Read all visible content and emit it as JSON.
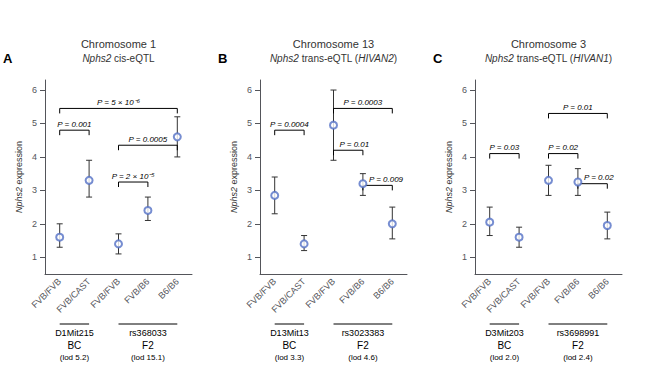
{
  "chart_data": [
    {
      "type": "scatter",
      "label": "A",
      "title": "Chromosome 1",
      "subtitle": "Nphs2 cis-eQTL",
      "categories": [
        "FVB/FVB",
        "FVB/CAST",
        "FVB/FVB",
        "FVB/B6",
        "B6/B6"
      ],
      "values": [
        1.6,
        3.3,
        1.4,
        2.4,
        4.6
      ],
      "lo": [
        1.3,
        2.8,
        1.1,
        2.1,
        4.0
      ],
      "hi": [
        2.0,
        3.9,
        1.7,
        2.8,
        5.2
      ],
      "marker": "circle",
      "ylabel": "Nphs2 expression",
      "ylim": [
        0.5,
        6.3
      ],
      "yticks": [
        1,
        2,
        3,
        4,
        5,
        6
      ],
      "grid": false,
      "brackets": [
        {
          "from": 0,
          "to": 1,
          "y": 4.8,
          "text": "P = 0.001"
        },
        {
          "from": 2,
          "to": 3,
          "y": 3.25,
          "text": "P = 2 × 10⁻⁵"
        },
        {
          "from": 2,
          "to": 4,
          "y": 4.35,
          "text": "P = 0.0005"
        },
        {
          "from": 0,
          "to": 4,
          "y": 5.45,
          "text": "P = 5 × 10⁻⁶"
        }
      ],
      "populations": [
        {
          "from": 0,
          "to": 1,
          "locus": "D1Mit215",
          "name": "BC",
          "lod": "(lod 5.2)"
        },
        {
          "from": 2,
          "to": 4,
          "locus": "rs368033",
          "name": "F2",
          "lod": "(lod 15.1)"
        }
      ]
    },
    {
      "type": "scatter",
      "label": "B",
      "title": "Chromosome 13",
      "subtitle": "Nphs2 trans-eQTL (HIVAN2)",
      "categories": [
        "FVB/FVB",
        "FVB/CAST",
        "FVB/FVB",
        "FVB/B6",
        "B6/B6"
      ],
      "values": [
        2.85,
        1.4,
        4.95,
        3.2,
        2.0
      ],
      "lo": [
        2.3,
        1.2,
        3.9,
        2.85,
        1.55
      ],
      "hi": [
        3.4,
        1.65,
        6.0,
        3.5,
        2.5
      ],
      "marker": "circle",
      "ylabel": "Nphs2 expression",
      "ylim": [
        0.5,
        6.3
      ],
      "yticks": [
        1,
        2,
        3,
        4,
        5,
        6
      ],
      "grid": false,
      "brackets": [
        {
          "from": 0,
          "to": 1,
          "y": 4.8,
          "text": "P = 0.0004"
        },
        {
          "from": 2,
          "to": 3,
          "y": 4.2,
          "text": "P = 0.01"
        },
        {
          "from": 3,
          "to": 4,
          "y": 3.15,
          "text": "P = 0.009"
        },
        {
          "from": 2,
          "to": 4,
          "y": 5.45,
          "text": "P = 0.0003"
        }
      ],
      "populations": [
        {
          "from": 0,
          "to": 1,
          "locus": "D13Mit13",
          "name": "BC",
          "lod": "(lod 3.3)"
        },
        {
          "from": 2,
          "to": 4,
          "locus": "rs3023383",
          "name": "F2",
          "lod": "(lod 4.6)"
        }
      ]
    },
    {
      "type": "scatter",
      "label": "C",
      "title": "Chromosome 3",
      "subtitle": "Nphs2 trans-eQTL (HIVAN1)",
      "categories": [
        "FVB/FVB",
        "FVB/CAST",
        "FVB/FVB",
        "FVB/B6",
        "B6/B6"
      ],
      "values": [
        2.05,
        1.6,
        3.3,
        3.25,
        1.95
      ],
      "lo": [
        1.65,
        1.3,
        2.85,
        2.85,
        1.55
      ],
      "hi": [
        2.5,
        1.9,
        3.75,
        3.65,
        2.35
      ],
      "marker": "circle",
      "ylabel": "Nphs2 expression",
      "ylim": [
        0.5,
        6.3
      ],
      "yticks": [
        1,
        2,
        3,
        4,
        5,
        6
      ],
      "grid": false,
      "brackets": [
        {
          "from": 0,
          "to": 1,
          "y": 4.1,
          "text": "P = 0.03"
        },
        {
          "from": 2,
          "to": 3,
          "y": 4.1,
          "text": "P = 0.02"
        },
        {
          "from": 3,
          "to": 4,
          "y": 3.2,
          "text": "P = 0.02"
        },
        {
          "from": 2,
          "to": 4,
          "y": 5.3,
          "text": "P = 0.01"
        }
      ],
      "populations": [
        {
          "from": 0,
          "to": 1,
          "locus": "D3Mit203",
          "name": "BC",
          "lod": "(lod 2.0)"
        },
        {
          "from": 2,
          "to": 4,
          "locus": "rs3698991",
          "name": "F2",
          "lod": "(lod 2.4)"
        }
      ]
    }
  ]
}
